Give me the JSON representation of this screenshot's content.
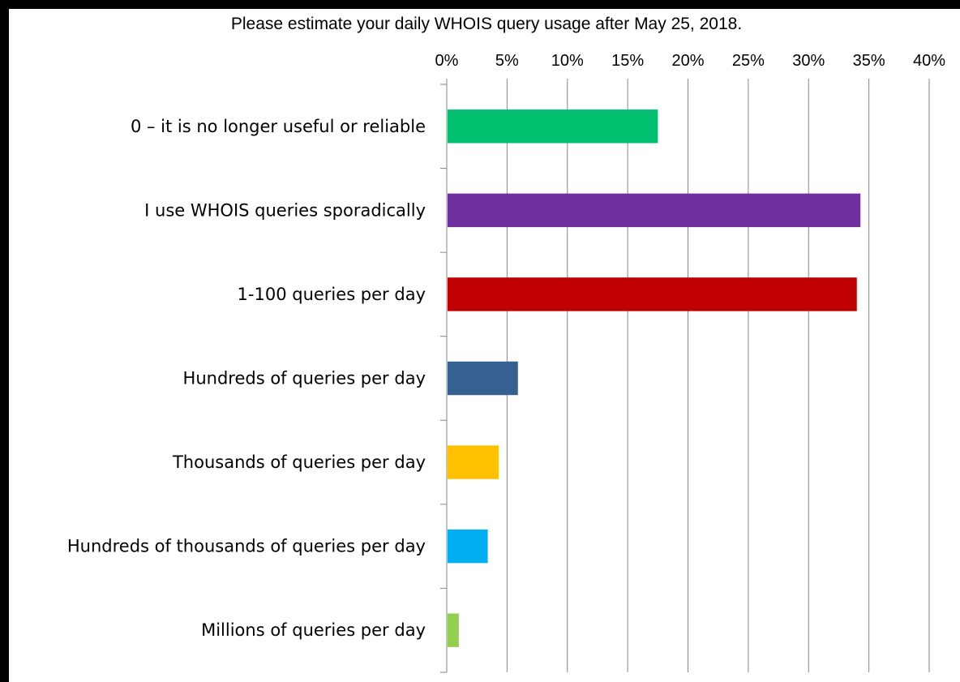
{
  "chart_data": {
    "type": "bar",
    "orientation": "horizontal",
    "title": "Please estimate your daily WHOIS query usage after May 25, 2018.",
    "xlabel": "",
    "ylabel": "",
    "xlim": [
      0,
      40
    ],
    "x_ticks": [
      "0%",
      "5%",
      "10%",
      "15%",
      "20%",
      "25%",
      "30%",
      "35%",
      "40%"
    ],
    "x_axis_position": "top",
    "grid": true,
    "legend": "none",
    "categories": [
      "0 – it is no longer useful or reliable",
      "I use WHOIS queries sporadically",
      "1-100 queries per day",
      "Hundreds of queries per day",
      "Thousands of queries per day",
      "Hundreds of thousands of queries per day",
      "Millions of queries per day"
    ],
    "values": [
      17.5,
      34.3,
      34.0,
      5.9,
      4.3,
      3.4,
      1.0
    ],
    "colors": [
      "#00BF6F",
      "#7030A0",
      "#C00000",
      "#376092",
      "#FFC000",
      "#00B0F0",
      "#92D050"
    ]
  }
}
